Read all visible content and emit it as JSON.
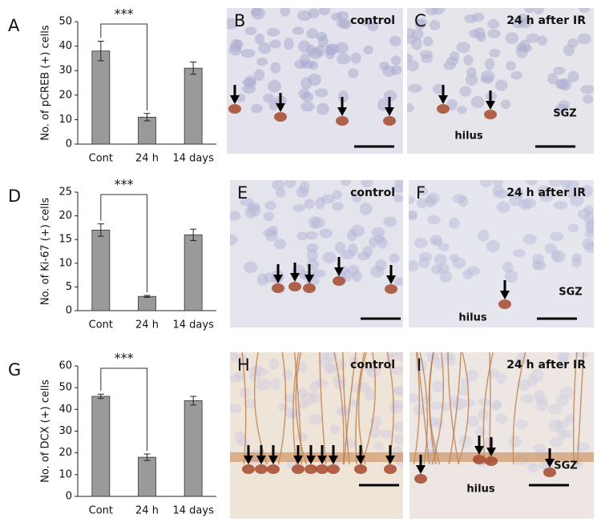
{
  "chart_data": [
    {
      "type": "bar",
      "label": "A",
      "y_label": "No. of pCREB (+) cells",
      "categories": [
        "Cont",
        "24 h",
        "14 days"
      ],
      "values": [
        38,
        11,
        31
      ],
      "errors": [
        4,
        1.5,
        2.5
      ],
      "color": "#9a9a9a",
      "ylim": [
        0,
        50
      ],
      "yticks": [
        0,
        10,
        20,
        30,
        40,
        50
      ],
      "annotation": "***"
    },
    {
      "type": "bar",
      "label": "D",
      "y_label": "No. of Ki-67 (+) cells",
      "categories": [
        "Cont",
        "24 h",
        "14 days"
      ],
      "values": [
        17,
        3,
        16
      ],
      "errors": [
        1.3,
        0.2,
        1.2
      ],
      "color": "#9a9a9a",
      "ylim": [
        0,
        25
      ],
      "yticks": [
        0,
        5,
        10,
        15,
        20,
        25
      ],
      "annotation": "***"
    },
    {
      "type": "bar",
      "label": "G",
      "y_label": "No. of DCX (+) cells",
      "categories": [
        "Cont",
        "24 h",
        "14 days"
      ],
      "values": [
        46,
        18,
        44
      ],
      "errors": [
        1,
        1.5,
        2
      ],
      "color": "#9a9a9a",
      "ylim": [
        0,
        60
      ],
      "yticks": [
        0,
        10,
        20,
        30,
        40,
        50,
        60
      ],
      "annotation": "***"
    }
  ],
  "images": [
    {
      "label": "B",
      "caption": "control"
    },
    {
      "label": "C",
      "caption": "24 h after IR",
      "region_labels": [
        "SGZ",
        "hilus"
      ]
    },
    {
      "label": "E",
      "caption": "control"
    },
    {
      "label": "F",
      "caption": "24 h after IR",
      "region_labels": [
        "SGZ",
        "hilus"
      ]
    },
    {
      "label": "H",
      "caption": "control"
    },
    {
      "label": "I",
      "caption": "24 h after IR",
      "region_labels": [
        "SGZ",
        "hilus"
      ]
    }
  ]
}
